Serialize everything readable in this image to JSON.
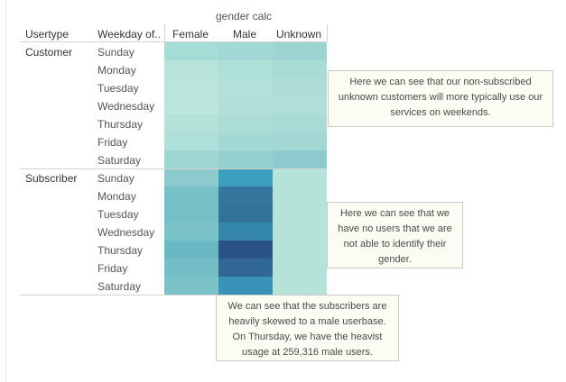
{
  "chart_data": {
    "type": "heatmap",
    "title": "gender calc",
    "row_headers": [
      "Usertype",
      "Weekday of.."
    ],
    "columns": [
      "Female",
      "Male",
      "Unknown"
    ],
    "groups": [
      {
        "name": "Customer",
        "rows": [
          "Sunday",
          "Monday",
          "Tuesday",
          "Wednesday",
          "Thursday",
          "Friday",
          "Saturday"
        ],
        "colors": [
          [
            "#a6dcd6",
            "#a2d8d5",
            "#9dd3d1"
          ],
          [
            "#b7e3d9",
            "#aedfd8",
            "#aadcd6"
          ],
          [
            "#bae5da",
            "#b3e0d8",
            "#b0ded7"
          ],
          [
            "#bae5da",
            "#b2e0d8",
            "#b1dfd8"
          ],
          [
            "#b4e2d9",
            "#acded7",
            "#a9dbd6"
          ],
          [
            "#aedfd8",
            "#a3d9d4",
            "#a2d7d4"
          ],
          [
            "#9fd5d1",
            "#95d0cf",
            "#8ec9cd"
          ]
        ]
      },
      {
        "name": "Subscriber",
        "rows": [
          "Sunday",
          "Monday",
          "Tuesday",
          "Wednesday",
          "Thursday",
          "Friday",
          "Saturday"
        ],
        "colors": [
          [
            "#8ccacd",
            "#3c9fbf",
            "#b5e3d9"
          ],
          [
            "#78c0c8",
            "#36769c",
            "#b5e3d9"
          ],
          [
            "#78c0c8",
            "#327498",
            "#b5e3d9"
          ],
          [
            "#7cc2c9",
            "#3586ab",
            "#b5e3d9"
          ],
          [
            "#6ab8c5",
            "#2a5282",
            "#b5e3d9"
          ],
          [
            "#74bec8",
            "#2f6892",
            "#b5e3d9"
          ],
          [
            "#7cc2c9",
            "#3a92b8",
            "#b5e3d9"
          ]
        ]
      }
    ]
  },
  "annotations": [
    {
      "text": "Here we can see that our non-subscribed unknown customers will more typically use our services on weekends."
    },
    {
      "text": "Here we can see that we have no users that we are not able to identify their gender."
    },
    {
      "text": "We can see that the subscribers are heavily skewed to a male userbase. On Thursday, we have the heavist usage at 259,316 male users."
    }
  ]
}
